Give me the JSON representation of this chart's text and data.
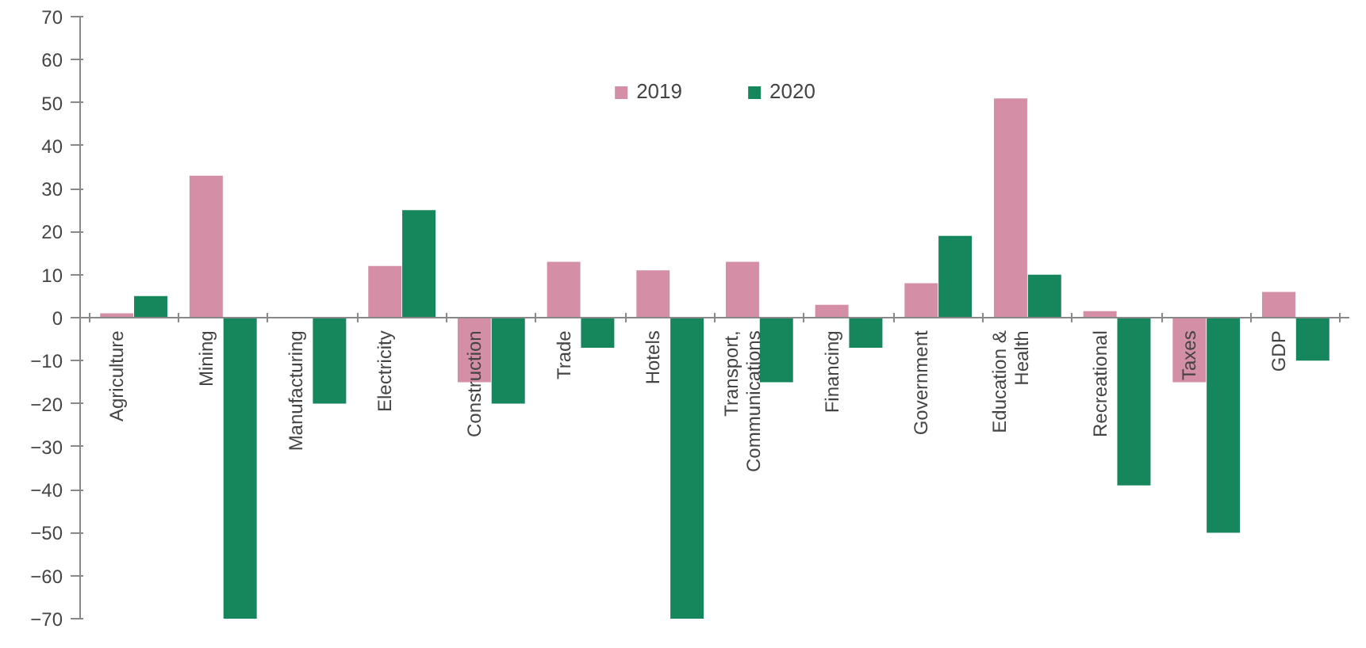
{
  "chart_data": {
    "type": "bar",
    "categories": [
      "Agriculture",
      "Mining",
      "Manufacturing",
      "Electricity",
      "Construction",
      "Trade",
      "Hotels",
      "Transport,\nCommunications",
      "Financing",
      "Government",
      "Education &\nHealth",
      "Recreational",
      "Taxes",
      "GDP"
    ],
    "series": [
      {
        "name": "2019",
        "color": "#d48fa6",
        "values": [
          1,
          33,
          0,
          12,
          -15,
          13,
          11,
          13,
          3,
          8,
          51,
          1.5,
          -15,
          6
        ]
      },
      {
        "name": "2020",
        "color": "#16875c",
        "values": [
          5,
          -70,
          -20,
          25,
          -20,
          -7,
          -70,
          -15,
          -7,
          19,
          10,
          -39,
          -50,
          -10
        ]
      }
    ],
    "ylim": [
      -70,
      70
    ],
    "yticks": [
      -70,
      -60,
      -50,
      -40,
      -30,
      -20,
      -10,
      0,
      10,
      20,
      30,
      40,
      50,
      60,
      70
    ],
    "grid": false,
    "legend": "top"
  }
}
